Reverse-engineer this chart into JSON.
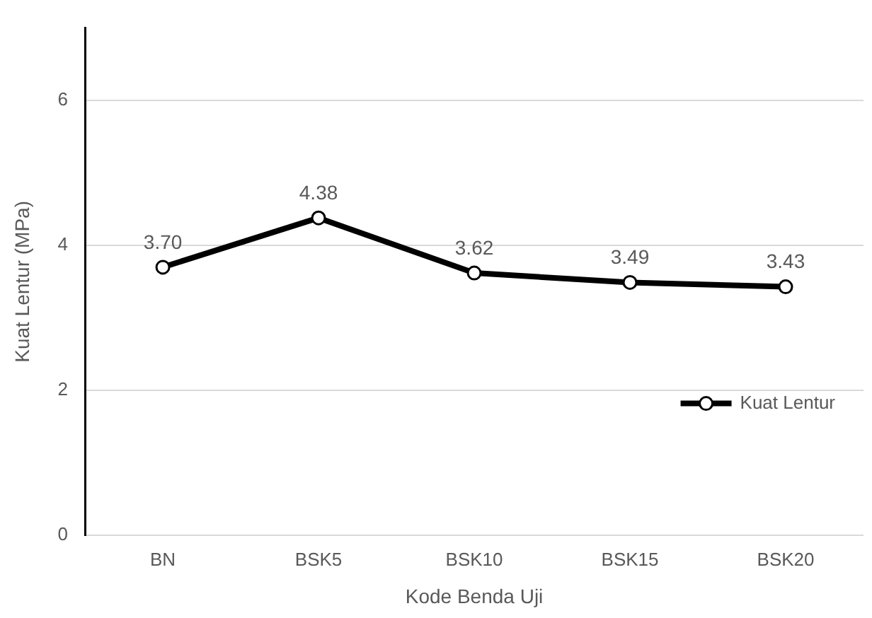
{
  "chart_data": {
    "type": "line",
    "xlabel": "Kode Benda Uji",
    "ylabel": "Kuat Lentur (MPa)",
    "categories": [
      "BN",
      "BSK5",
      "BSK10",
      "BSK15",
      "BSK20"
    ],
    "series": [
      {
        "name": "Kuat Lentur",
        "color": "#000000",
        "values": [
          3.7,
          4.38,
          3.62,
          3.49,
          3.43
        ],
        "value_labels": [
          "3.70",
          "4.38",
          "3.62",
          "3.49",
          "3.43"
        ]
      }
    ],
    "ylim": [
      0,
      7
    ],
    "yticks": [
      0,
      2,
      4,
      6
    ],
    "grid": "y",
    "legend": "right",
    "marker": "circle",
    "line_style": "solid"
  }
}
